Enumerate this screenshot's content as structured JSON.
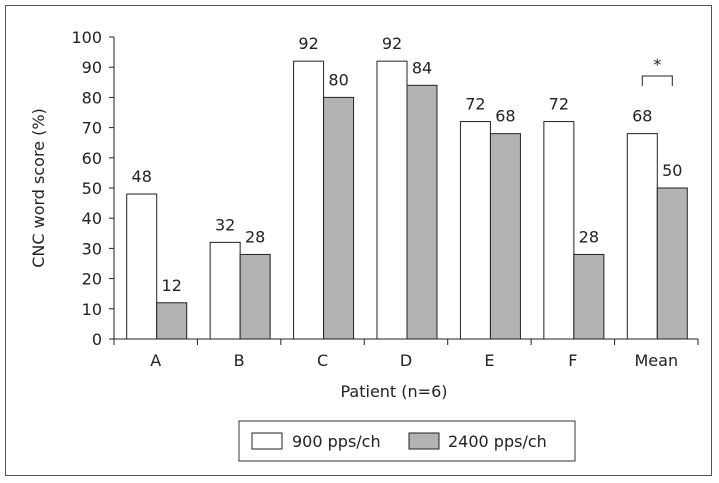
{
  "chart_data": {
    "type": "bar",
    "title": "",
    "xlabel": "Patient (n=6)",
    "ylabel": "CNC word score (%)",
    "ylim": [
      0,
      100
    ],
    "yticks": [
      0,
      10,
      20,
      30,
      40,
      50,
      60,
      70,
      80,
      90,
      100
    ],
    "categories": [
      "A",
      "B",
      "C",
      "D",
      "E",
      "F",
      "Mean"
    ],
    "series": [
      {
        "name": "900 pps/ch",
        "values": [
          48,
          32,
          92,
          92,
          72,
          72,
          68
        ],
        "color": "#ffffff"
      },
      {
        "name": "2400 pps/ch",
        "values": [
          12,
          28,
          80,
          84,
          68,
          28,
          50
        ],
        "color": "#b3b3b3"
      }
    ],
    "annotations": [
      {
        "text": "*",
        "category": "Mean"
      }
    ],
    "grid": false,
    "legend_position": "bottom"
  }
}
